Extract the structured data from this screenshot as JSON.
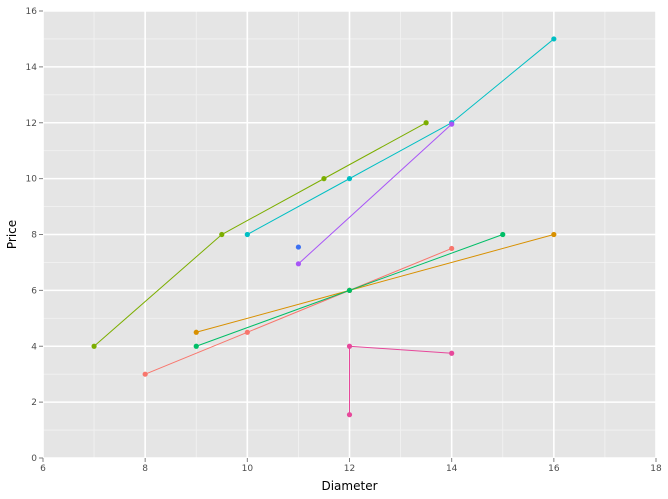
{
  "chart_data": {
    "type": "line",
    "title": "",
    "xlabel": "Diameter",
    "ylabel": "Price",
    "xlim": [
      6,
      18
    ],
    "ylim": [
      0,
      16
    ],
    "x_ticks": [
      6,
      8,
      10,
      12,
      14,
      16,
      18
    ],
    "y_ticks": [
      0,
      2,
      4,
      6,
      8,
      10,
      12,
      14,
      16
    ],
    "grid": true,
    "legend": "none",
    "background": "#e5e5e5",
    "grid_color": "#ffffff",
    "series": [
      {
        "color": "#f8766d",
        "points": [
          [
            8,
            3
          ],
          [
            10,
            4.5
          ],
          [
            12,
            6
          ],
          [
            14,
            7.5
          ]
        ]
      },
      {
        "color": "#d89000",
        "points": [
          [
            9,
            4.5
          ],
          [
            12,
            6
          ],
          [
            16,
            8
          ]
        ]
      },
      {
        "color": "#7cae00",
        "points": [
          [
            7,
            4
          ],
          [
            9.5,
            8
          ],
          [
            11.5,
            10
          ],
          [
            13.5,
            12
          ]
        ]
      },
      {
        "color": "#00be67",
        "points": [
          [
            9,
            4
          ],
          [
            12,
            6
          ],
          [
            15,
            8
          ]
        ]
      },
      {
        "color": "#00bfc4",
        "points": [
          [
            10,
            8
          ],
          [
            12,
            10
          ],
          [
            14,
            12
          ],
          [
            16,
            15
          ]
        ]
      },
      {
        "color": "#3d71f2",
        "points": [
          [
            11,
            7.55
          ]
        ]
      },
      {
        "color": "#a855f7",
        "points": [
          [
            11,
            6.95
          ],
          [
            14,
            11.95
          ]
        ]
      },
      {
        "color": "#e7489b",
        "points": [
          [
            12,
            1.55
          ],
          [
            12,
            4
          ],
          [
            14,
            3.75
          ]
        ]
      }
    ]
  }
}
